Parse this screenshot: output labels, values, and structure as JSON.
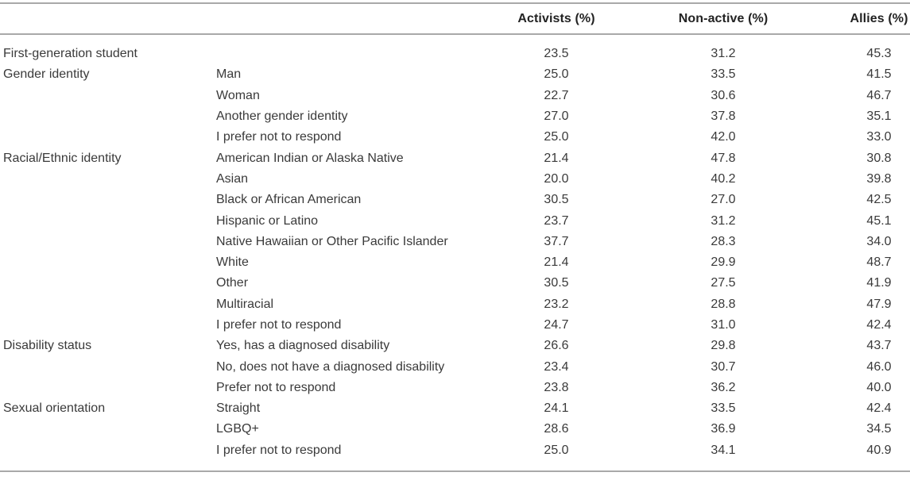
{
  "table": {
    "colors": {
      "rule": "#a9a9a9",
      "header_text": "#222222",
      "body_text": "#3a3a3a",
      "background": "#ffffff"
    },
    "headers": {
      "category": "",
      "subcategory": "",
      "activists": "Activists (%)",
      "non_active": "Non-active (%)",
      "allies": "Allies (%)"
    },
    "rows": [
      {
        "category": "First-generation student",
        "subcategory": "",
        "activists": "23.5",
        "non_active": "31.2",
        "allies": "45.3"
      },
      {
        "category": "Gender identity",
        "subcategory": "Man",
        "activists": "25.0",
        "non_active": "33.5",
        "allies": "41.5"
      },
      {
        "category": "",
        "subcategory": "Woman",
        "activists": "22.7",
        "non_active": "30.6",
        "allies": "46.7"
      },
      {
        "category": "",
        "subcategory": "Another gender identity",
        "activists": "27.0",
        "non_active": "37.8",
        "allies": "35.1"
      },
      {
        "category": "",
        "subcategory": "I prefer not to respond",
        "activists": "25.0",
        "non_active": "42.0",
        "allies": "33.0"
      },
      {
        "category": "Racial/Ethnic identity",
        "subcategory": "American Indian or Alaska Native",
        "activists": "21.4",
        "non_active": "47.8",
        "allies": "30.8"
      },
      {
        "category": "",
        "subcategory": "Asian",
        "activists": "20.0",
        "non_active": "40.2",
        "allies": "39.8"
      },
      {
        "category": "",
        "subcategory": "Black or African American",
        "activists": "30.5",
        "non_active": "27.0",
        "allies": "42.5"
      },
      {
        "category": "",
        "subcategory": "Hispanic or Latino",
        "activists": "23.7",
        "non_active": "31.2",
        "allies": "45.1"
      },
      {
        "category": "",
        "subcategory": "Native Hawaiian or Other Pacific Islander",
        "activists": "37.7",
        "non_active": "28.3",
        "allies": "34.0"
      },
      {
        "category": "",
        "subcategory": "White",
        "activists": "21.4",
        "non_active": "29.9",
        "allies": "48.7"
      },
      {
        "category": "",
        "subcategory": "Other",
        "activists": "30.5",
        "non_active": "27.5",
        "allies": "41.9"
      },
      {
        "category": "",
        "subcategory": "Multiracial",
        "activists": "23.2",
        "non_active": "28.8",
        "allies": "47.9"
      },
      {
        "category": "",
        "subcategory": "I prefer not to respond",
        "activists": "24.7",
        "non_active": "31.0",
        "allies": "42.4"
      },
      {
        "category": "Disability status",
        "subcategory": "Yes, has a diagnosed disability",
        "activists": "26.6",
        "non_active": "29.8",
        "allies": "43.7"
      },
      {
        "category": "",
        "subcategory": "No, does not have a diagnosed disability",
        "activists": "23.4",
        "non_active": "30.7",
        "allies": "46.0"
      },
      {
        "category": "",
        "subcategory": "Prefer not to respond",
        "activists": "23.8",
        "non_active": "36.2",
        "allies": "40.0"
      },
      {
        "category": "Sexual orientation",
        "subcategory": "Straight",
        "activists": "24.1",
        "non_active": "33.5",
        "allies": "42.4"
      },
      {
        "category": "",
        "subcategory": "LGBQ+",
        "activists": "28.6",
        "non_active": "36.9",
        "allies": "34.5"
      },
      {
        "category": "",
        "subcategory": "I prefer not to respond",
        "activists": "25.0",
        "non_active": "34.1",
        "allies": "40.9"
      }
    ]
  }
}
